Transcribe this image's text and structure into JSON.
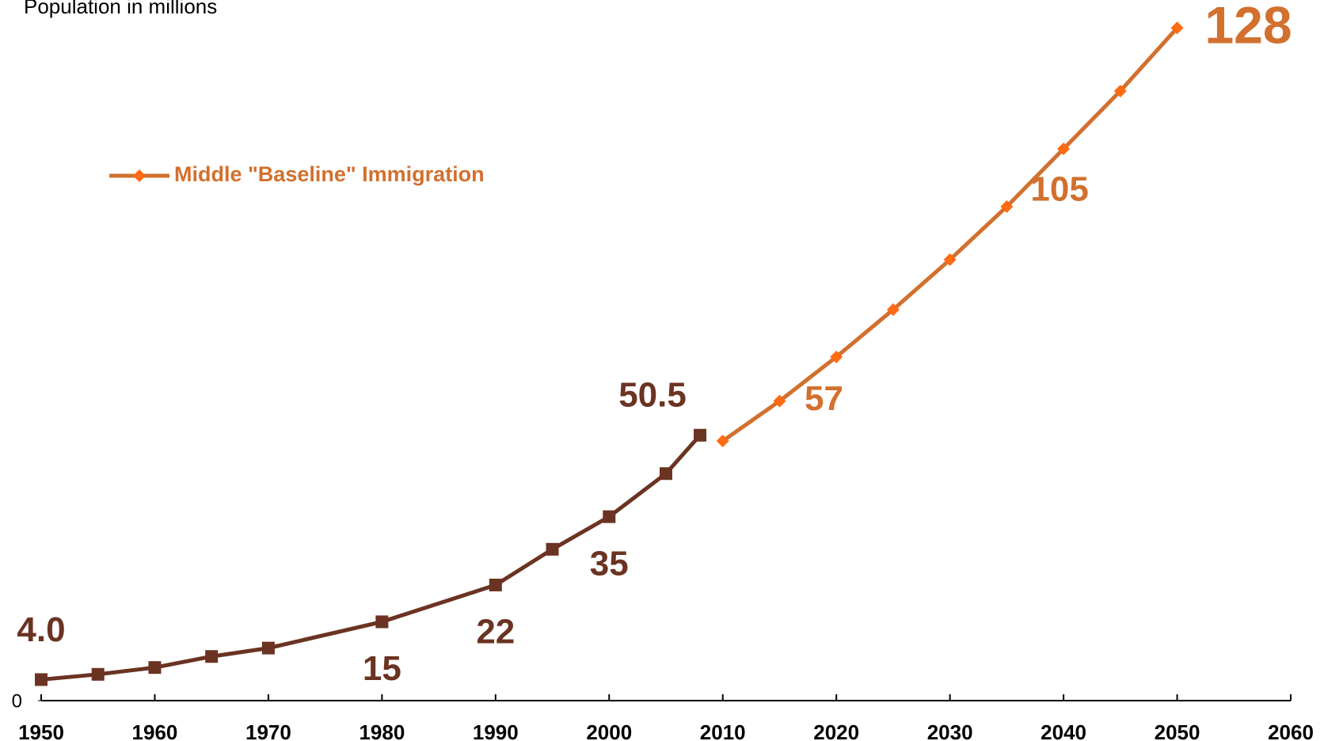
{
  "chart_data": {
    "type": "line",
    "subtitle": "Population in millions",
    "xlim": [
      1950,
      2060
    ],
    "xticks": [
      1950,
      1960,
      1970,
      1980,
      1990,
      2000,
      2010,
      2020,
      2030,
      2040,
      2050,
      2060
    ],
    "ylim": [
      0,
      130
    ],
    "yticks": [
      0
    ],
    "legend": "top-left",
    "series": [
      {
        "color": "#6b3322",
        "x": [
          1950,
          1955,
          1960,
          1965,
          1970,
          1980,
          1990,
          1995,
          2000,
          2005,
          2008
        ],
        "values": [
          4.0,
          5,
          6.3,
          8.4,
          10,
          15,
          22,
          28.8,
          35,
          43.2,
          50.5
        ],
        "value_labels": [
          "4.0",
          null,
          null,
          null,
          null,
          "15",
          "22",
          null,
          "35",
          null,
          "50.5"
        ]
      },
      {
        "name": "Middle \"Baseline\" Immigration",
        "color": "#d2702e",
        "x": [
          2010,
          2015,
          2020,
          2025,
          2030,
          2035,
          2040,
          2045,
          2050
        ],
        "values": [
          49.4,
          57,
          65.4,
          74.4,
          83.9,
          94,
          105,
          116,
          128
        ],
        "value_labels": [
          null,
          "57",
          null,
          null,
          null,
          null,
          "105",
          null,
          "128"
        ]
      }
    ]
  }
}
